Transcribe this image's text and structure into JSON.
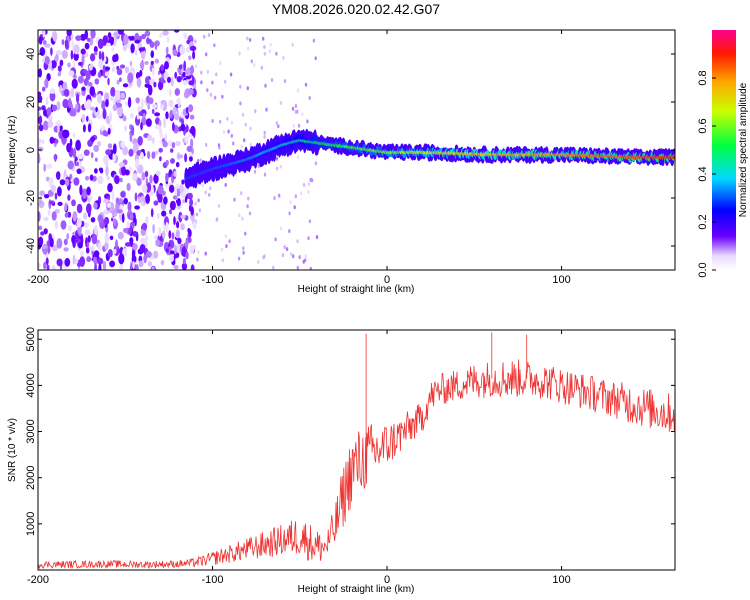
{
  "title": "YM08.2026.020.02.42.G07",
  "chart_data": [
    {
      "type": "heatmap",
      "name": "spectrogram",
      "xlabel": "Height of straight line (km)",
      "ylabel": "Frequency (Hz)",
      "xlim": [
        -200,
        165
      ],
      "ylim": [
        -50,
        50
      ],
      "xticks": [
        -200,
        -100,
        0,
        100
      ],
      "yticks": [
        -40,
        -20,
        0,
        20,
        40
      ],
      "colorbar": {
        "label": "Normalized spectral amplitude",
        "range": [
          0,
          1
        ],
        "ticks": [
          0.0,
          0.2,
          0.4,
          0.6,
          0.8
        ],
        "tick_labels": [
          "0.0",
          "0.2",
          "0.4",
          "0.6",
          "0.8"
        ]
      },
      "dominant_frequency_trace": {
        "height_km": [
          -115,
          -100,
          -80,
          -60,
          -50,
          -40,
          -20,
          0,
          20,
          60,
          100,
          140,
          165
        ],
        "frequency_hz": [
          -12,
          -8,
          -4,
          2,
          4,
          3,
          1,
          -1,
          -1,
          -2,
          -2,
          -3,
          -3
        ],
        "amplitude": [
          0.3,
          0.3,
          0.35,
          0.4,
          0.45,
          0.5,
          0.55,
          0.6,
          0.65,
          0.75,
          0.8,
          0.85,
          0.9
        ]
      },
      "noise_region_km": [
        -200,
        -110
      ]
    },
    {
      "type": "line",
      "name": "snr",
      "xlabel": "Height of straight line (km)",
      "ylabel": "SNR (10 * v/v)",
      "xlim": [
        -200,
        165
      ],
      "ylim": [
        0,
        5200
      ],
      "xticks": [
        -200,
        -100,
        0,
        100
      ],
      "yticks": [
        1000,
        2000,
        3000,
        4000,
        5000
      ],
      "color": "#ee3333",
      "series": [
        {
          "name": "SNR",
          "x": [
            -200,
            -180,
            -160,
            -140,
            -120,
            -110,
            -100,
            -90,
            -80,
            -70,
            -60,
            -50,
            -40,
            -35,
            -30,
            -25,
            -20,
            -10,
            0,
            10,
            20,
            25,
            30,
            40,
            50,
            60,
            70,
            80,
            90,
            100,
            110,
            120,
            130,
            140,
            150,
            160,
            165
          ],
          "y": [
            120,
            120,
            130,
            120,
            130,
            160,
            250,
            350,
            450,
            550,
            650,
            750,
            500,
            500,
            900,
            1600,
            2200,
            2500,
            2700,
            3000,
            3300,
            3750,
            3900,
            4000,
            4100,
            4150,
            4150,
            4150,
            4100,
            4000,
            3900,
            3800,
            3700,
            3600,
            3500,
            3400,
            3400
          ],
          "noise_amplitude": [
            80,
            80,
            80,
            80,
            80,
            100,
            150,
            200,
            250,
            300,
            350,
            450,
            400,
            300,
            500,
            700,
            800,
            700,
            500,
            400,
            350,
            350,
            350,
            350,
            400,
            400,
            450,
            400,
            400,
            400,
            400,
            400,
            400,
            450,
            450,
            450,
            450
          ],
          "spikes": [
            {
              "x": -12,
              "y": 5120
            },
            {
              "x": 80,
              "y": 5100
            },
            {
              "x": 60,
              "y": 5150
            }
          ]
        }
      ]
    }
  ]
}
